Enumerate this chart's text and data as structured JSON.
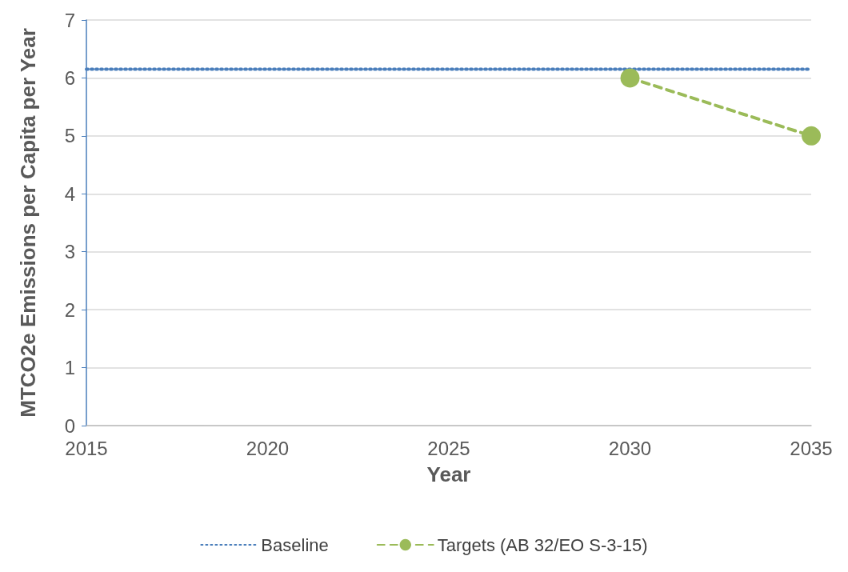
{
  "chart_data": {
    "type": "line",
    "xlabel": "Year",
    "ylabel": "MTCO2e Emissions per Capita per Year",
    "xlim": [
      2015,
      2035
    ],
    "xticks": [
      2015,
      2020,
      2025,
      2030,
      2035
    ],
    "ylim": [
      0,
      7
    ],
    "yticks": [
      0,
      1,
      2,
      3,
      4,
      5,
      6,
      7
    ],
    "series": [
      {
        "name": "Baseline",
        "color": "#4a7ebb",
        "x": [
          2015,
          2035
        ],
        "values": [
          6.15,
          6.15
        ],
        "line_style": "dotted",
        "marker": "none"
      },
      {
        "name": "Targets (AB 32/EO S-3-15)",
        "color": "#9bbb59",
        "x": [
          2030,
          2035
        ],
        "values": [
          6,
          5
        ],
        "line_style": "dashed",
        "marker": "circle"
      }
    ],
    "grid": "y",
    "legend": "bottom"
  }
}
